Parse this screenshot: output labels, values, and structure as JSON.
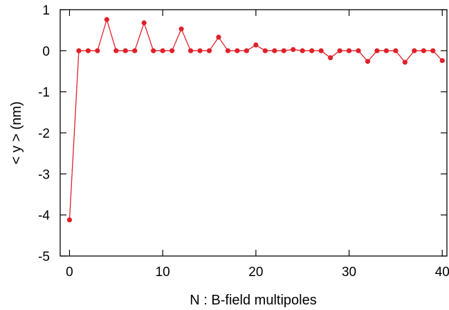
{
  "chart_data": {
    "type": "line",
    "xlabel": "N : B-field multipoles",
    "ylabel": "< y >    (nm)",
    "xlim": [
      -1,
      40.5
    ],
    "ylim": [
      -5,
      1
    ],
    "xticks": [
      0,
      10,
      20,
      30,
      40
    ],
    "yticks": [
      1,
      0,
      -1,
      -2,
      -3,
      -4,
      -5
    ],
    "grid": false,
    "legend": "none",
    "series": [
      {
        "color": "#e0202a",
        "marker": "circle",
        "x": [
          0,
          1,
          2,
          3,
          4,
          5,
          6,
          7,
          8,
          9,
          10,
          11,
          12,
          13,
          14,
          15,
          16,
          17,
          18,
          19,
          20,
          21,
          22,
          23,
          24,
          25,
          26,
          27,
          28,
          29,
          30,
          31,
          32,
          33,
          34,
          35,
          36,
          37,
          38,
          39,
          40
        ],
        "y": [
          -4.12,
          0,
          0,
          0,
          0.76,
          0,
          0,
          0,
          0.68,
          0,
          0,
          0,
          0.53,
          0,
          0,
          0,
          0.33,
          0,
          0,
          0,
          0.14,
          0,
          0,
          0,
          0.03,
          0,
          0,
          0,
          -0.17,
          0,
          0,
          0,
          -0.26,
          0,
          0,
          0,
          -0.28,
          0,
          0,
          0,
          -0.24
        ]
      }
    ]
  }
}
